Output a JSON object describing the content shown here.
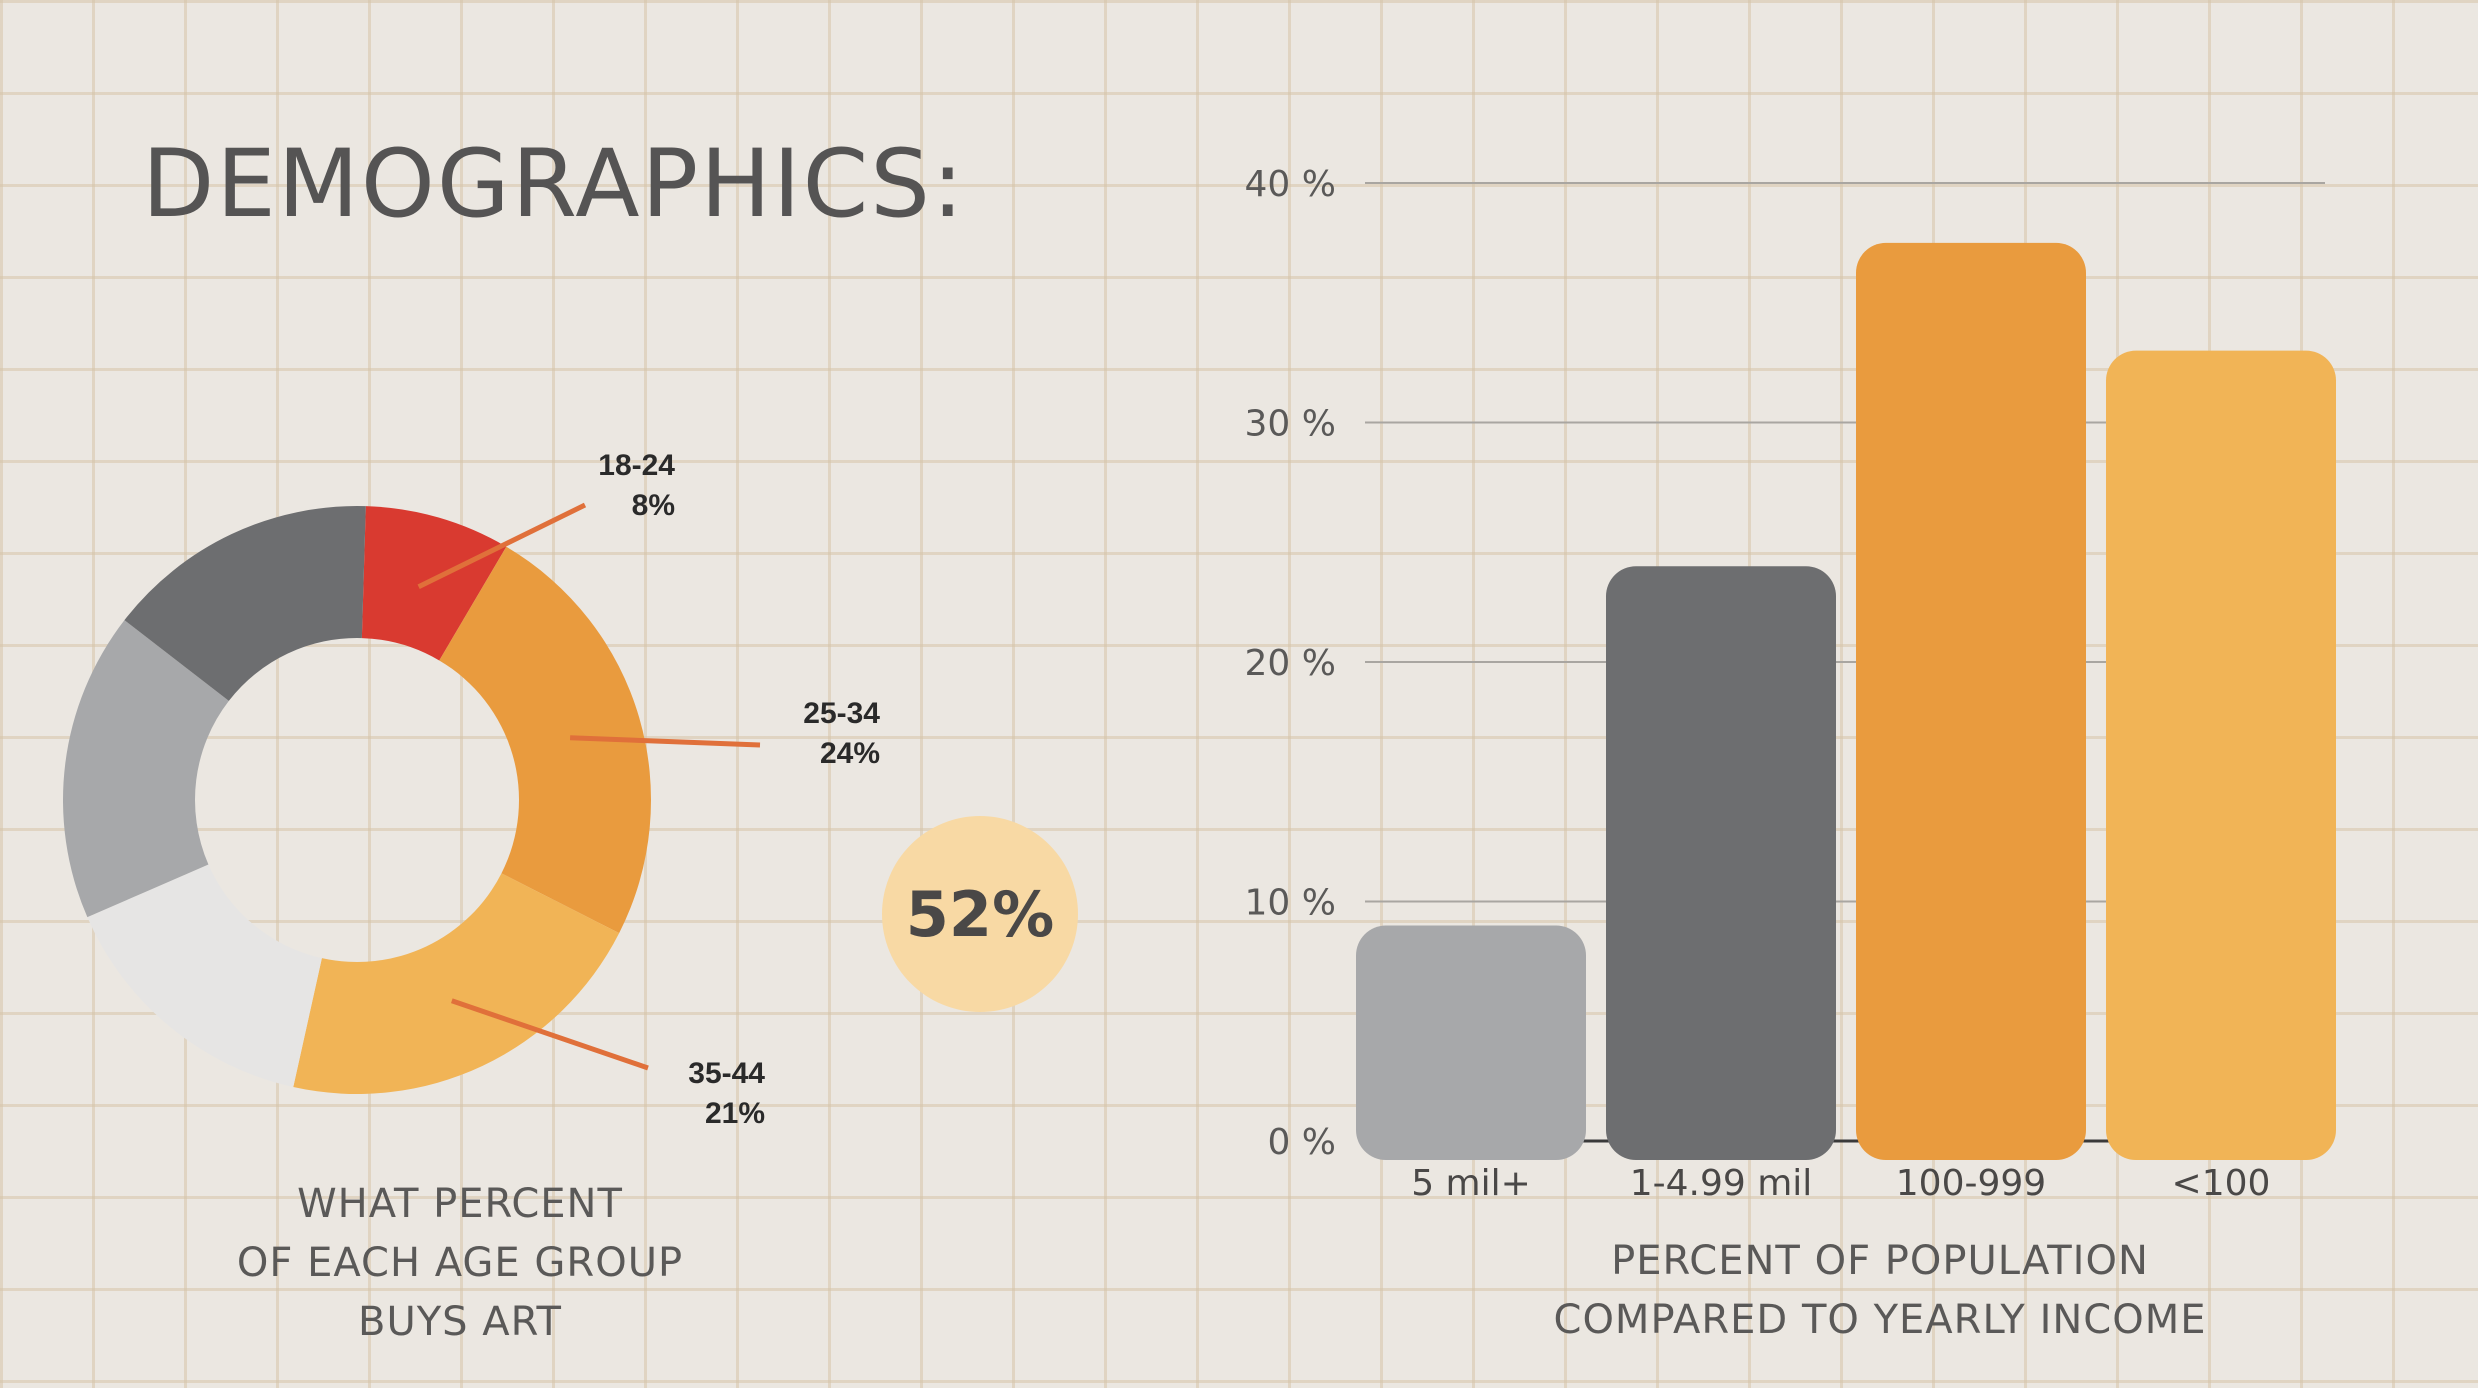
{
  "page": {
    "title": "DEMOGRAPHICS:",
    "badge_value": "52%"
  },
  "captions": {
    "donut": [
      "WHAT PERCENT",
      "OF EACH AGE GROUP",
      "BUYS ART"
    ],
    "bar": [
      "PERCENT OF POPULATION",
      "COMPARED TO YEARLY INCOME"
    ]
  },
  "chart_data": [
    {
      "type": "pie",
      "style": "donut",
      "slices": [
        {
          "label": "18-24",
          "value": 8,
          "display": "8%",
          "color": "#d93a30",
          "labeled": true
        },
        {
          "label": "25-34",
          "value": 24,
          "display": "24%",
          "color": "#e99b3e",
          "labeled": true
        },
        {
          "label": "35-44",
          "value": 21,
          "display": "21%",
          "color": "#f1b456",
          "labeled": true
        },
        {
          "label": "",
          "value": 15,
          "display": "",
          "color": "#e6e5e4",
          "labeled": false
        },
        {
          "label": "",
          "value": 17,
          "display": "",
          "color": "#a7a8aa",
          "labeled": false
        },
        {
          "label": "",
          "value": 15,
          "display": "",
          "color": "#6d6e70",
          "labeled": false
        }
      ],
      "leader_color": "#e0703a"
    },
    {
      "type": "bar",
      "categories": [
        "5 mil+",
        "1-4.99 mil",
        "100-999",
        "<100"
      ],
      "values": [
        9,
        24,
        37.5,
        33
      ],
      "colors": [
        "#a7a8aa",
        "#6d6e70",
        "#e99b3e",
        "#f1b456"
      ],
      "yticks": [
        "0 %",
        "10 %",
        "20 %",
        "30 %",
        "40 %"
      ],
      "ylim": [
        0,
        40
      ],
      "grid": true,
      "xlabel": "",
      "ylabel": ""
    }
  ]
}
